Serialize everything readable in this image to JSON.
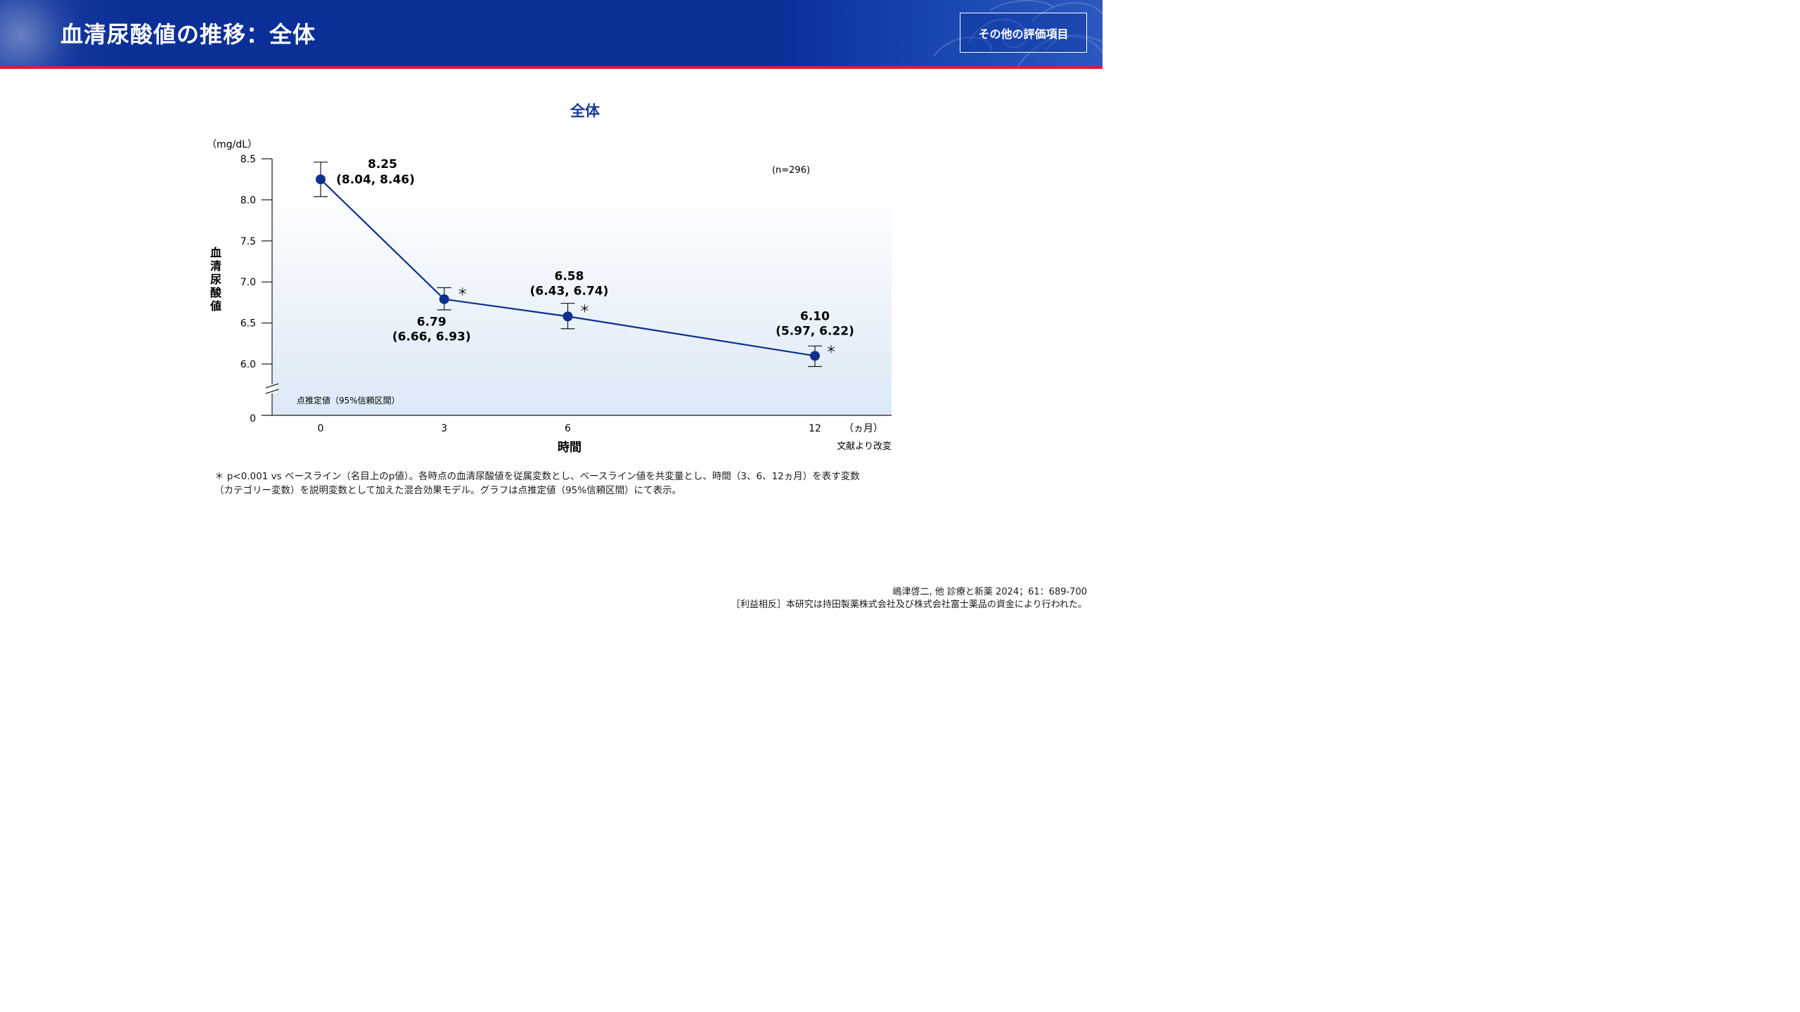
{
  "header": {
    "title": "血清尿酸値の推移：全体",
    "button_label": "その他の評価項目"
  },
  "colors": {
    "header_bg": "#0a2f97",
    "header_border": "#d6202a",
    "series": "#0d2f8f",
    "title_blue": "#1a3a9a"
  },
  "chart_data": {
    "type": "line",
    "title": "全体",
    "xlabel": "時間",
    "x_unit": "（ヵ月）",
    "ylabel": "血清尿酸値",
    "y_unit": "（mg/dL）",
    "x": [
      0,
      3,
      6,
      12
    ],
    "x_tick_labels": [
      "0",
      "3",
      "6",
      "12"
    ],
    "y_tick_labels": [
      "8.5",
      "8.0",
      "7.5",
      "7.0",
      "6.5",
      "6.0",
      "0"
    ],
    "y_ticks": [
      8.5,
      8.0,
      7.5,
      7.0,
      6.5,
      6.0
    ],
    "ylim": [
      6.0,
      8.5
    ],
    "axis_break": true,
    "y_zero_label": "0",
    "grid": false,
    "series": [
      {
        "name": "",
        "values": [
          8.25,
          6.79,
          6.58,
          6.1
        ],
        "ci_lower": [
          8.04,
          6.66,
          6.43,
          5.97
        ],
        "ci_upper": [
          8.46,
          6.93,
          6.74,
          6.22
        ],
        "value_labels": [
          "8.25",
          "6.79",
          "6.58",
          "6.10"
        ],
        "ci_labels": [
          "(8.04, 8.46)",
          "(6.66, 6.93)",
          "(6.43, 6.74)",
          "(5.97, 6.22)"
        ],
        "significant": [
          false,
          true,
          true,
          true
        ]
      }
    ],
    "sample_size": "(n=296)",
    "legend_note": "点推定値（95%信頼区間）",
    "significance_marker": "＊",
    "source_note": "文献より改変"
  },
  "footnote": {
    "line1": "＊ p<0.001 vs ベースライン（名目上のp値）。各時点の血清尿酸値を従属変数とし、ベースライン値を共変量とし、時間（3、6、12ヵ月）を表す変数",
    "line2": "（カテゴリー変数）を説明変数として加えた混合効果モデル。グラフは点推定値（95%信頼区間）にて表示。"
  },
  "citation": {
    "line1": "嶋津啓二, 他 診療と新薬 2024；61：689-700",
    "line2": "［利益相反］本研究は持田製薬株式会社及び株式会社富士薬品の資金により行われた。"
  }
}
